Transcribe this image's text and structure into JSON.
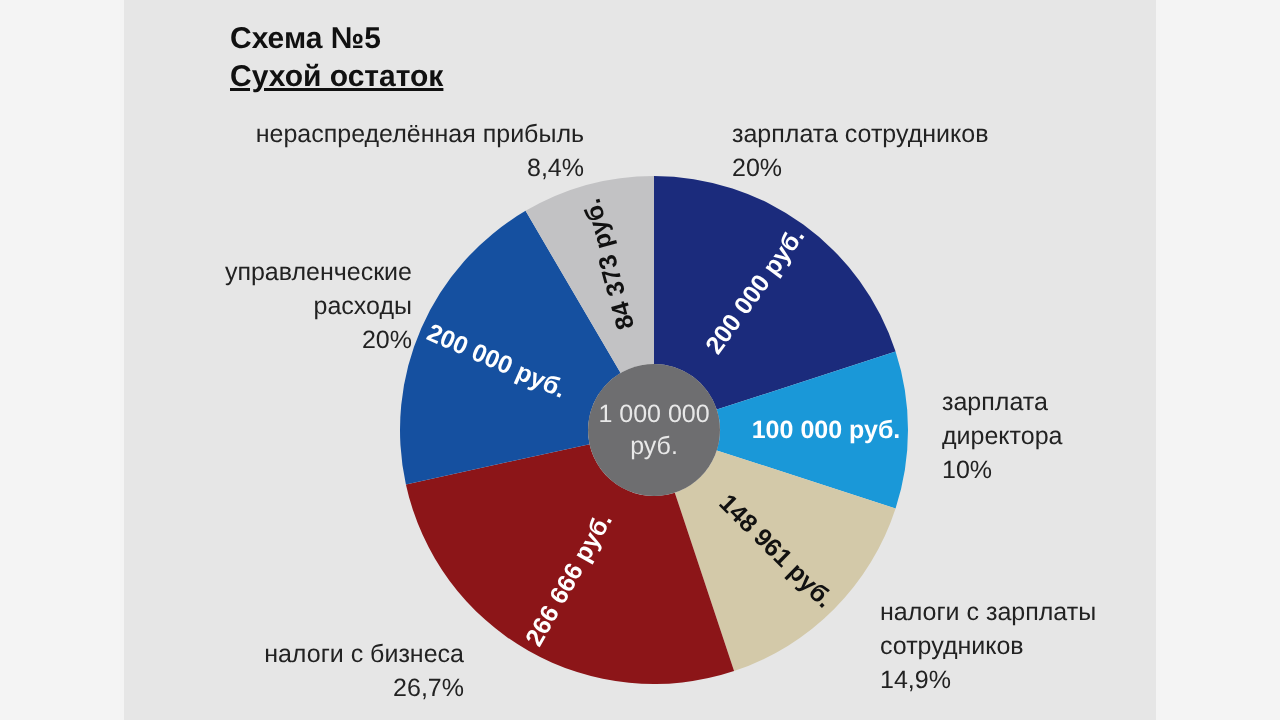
{
  "chart_data": {
    "type": "donut",
    "title": "Схема №5",
    "subtitle": "Сухой остаток",
    "categories": [
      "зарплата сотрудников",
      "зарплата директора",
      "налоги с зарплаты сотрудников",
      "налоги с бизнеса",
      "управленческие расходы",
      "нераспределённая прибыль"
    ],
    "values": [
      200000,
      100000,
      148961,
      266666,
      200000,
      84373
    ],
    "colors": [
      "#1b2b7c",
      "#1a98d8",
      "#d3c9a9",
      "#8c1518",
      "#1550a0",
      "#c2c2c4"
    ],
    "value_labels": [
      "200 000 руб.",
      "100 000 руб.",
      "148 961 руб.",
      "266 666 руб.",
      "200 000 руб.",
      "84 373 руб."
    ],
    "annotations": [
      {
        "text": "20%",
        "x": "зарплата сотрудников"
      },
      {
        "text": "10%",
        "x": "зарплата директора"
      },
      {
        "text": "14,9%",
        "x": "налоги с зарплаты сотрудников"
      },
      {
        "text": "26,7%",
        "x": "налоги с бизнеса"
      },
      {
        "text": "20%",
        "x": "управленческие расходы"
      },
      {
        "text": "8,4%",
        "x": "нераспределённая прибыль"
      },
      "1 000 000 руб."
    ]
  }
}
